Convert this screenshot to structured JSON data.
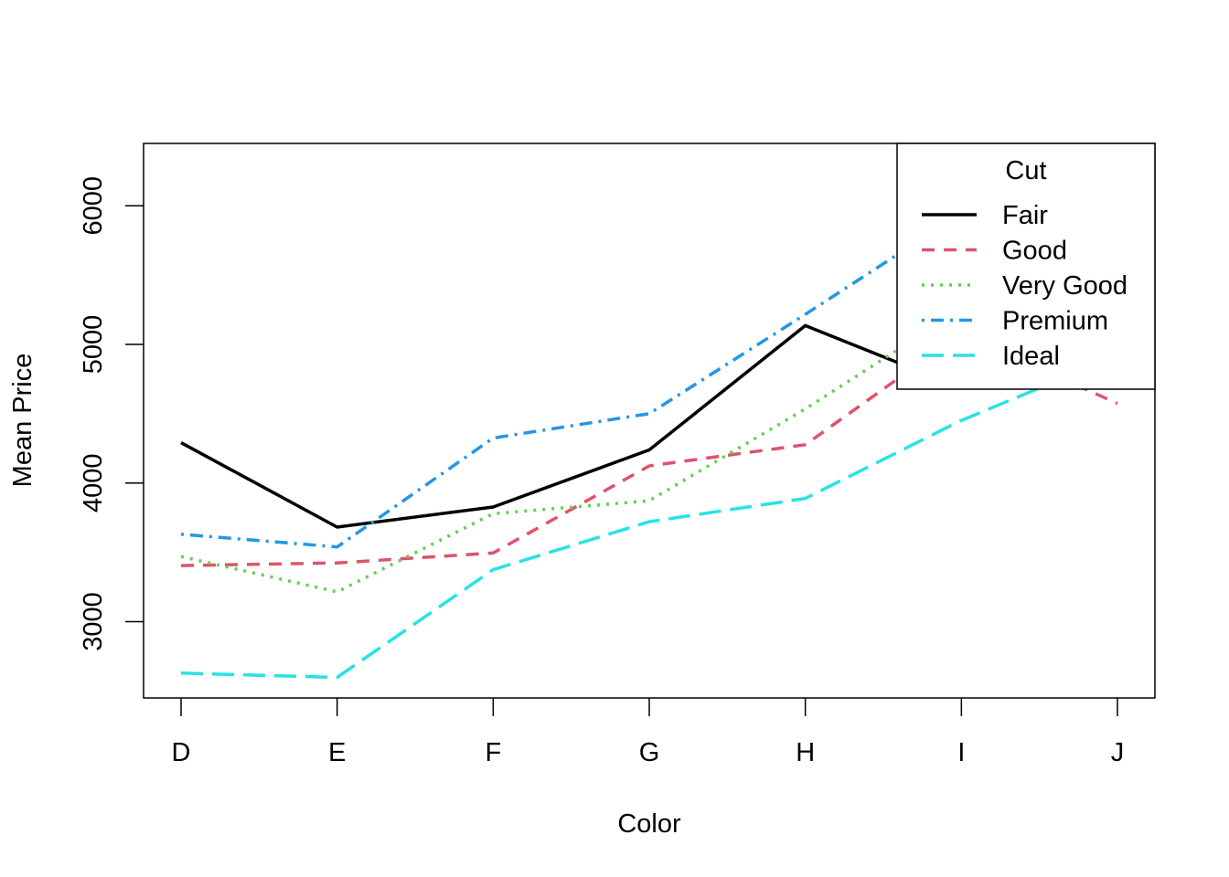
{
  "chart_data": {
    "type": "line",
    "title": "",
    "xlabel": "Color",
    "ylabel": "Mean Price",
    "categories": [
      "D",
      "E",
      "F",
      "G",
      "H",
      "I",
      "J"
    ],
    "yticks": [
      3000,
      4000,
      5000,
      6000
    ],
    "ylim": [
      2450,
      6450
    ],
    "grid": false,
    "legend": {
      "title": "Cut",
      "placement": "top-right"
    },
    "series": [
      {
        "name": "Fair",
        "color": "#000000",
        "dash": "solid",
        "values": [
          4291,
          3682,
          3827,
          4239,
          5136,
          4685,
          4976
        ]
      },
      {
        "name": "Good",
        "color": "#DF536B",
        "dash": "dashed",
        "values": [
          3405,
          3424,
          3496,
          4124,
          4277,
          5079,
          4574
        ]
      },
      {
        "name": "Very Good",
        "color": "#61D04F",
        "dash": "dotted",
        "values": [
          3470,
          3215,
          3779,
          3873,
          4535,
          5256,
          5104
        ]
      },
      {
        "name": "Premium",
        "color": "#2297E6",
        "dash": "dotdash",
        "values": [
          3631,
          3539,
          4325,
          4501,
          5217,
          5947,
          6295
        ]
      },
      {
        "name": "Ideal",
        "color": "#28E2E5",
        "dash": "longdash",
        "values": [
          2629,
          2598,
          3375,
          3721,
          3889,
          4452,
          4918
        ]
      }
    ]
  }
}
